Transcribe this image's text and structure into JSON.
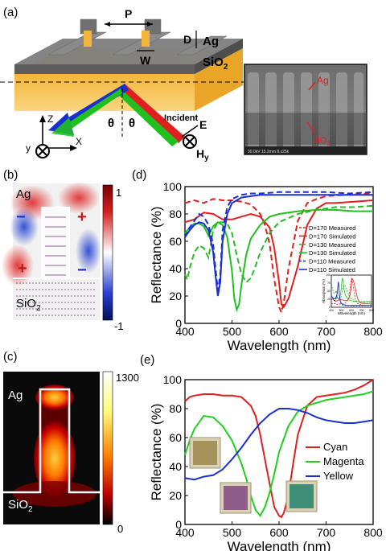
{
  "panels": {
    "a": {
      "label": "(a)",
      "period": "P",
      "width": "W",
      "depth": "D",
      "metal": "Ag",
      "substrate": "SiO",
      "substrate_sub": "2",
      "angle1": "θ",
      "angle2": "θ",
      "incident": "Incident",
      "e_field": "E",
      "h_field": "H",
      "h_sub": "y",
      "axis_z": "Z",
      "axis_x": "X",
      "axis_y": "y",
      "sem_metal": "Ag",
      "sem_substrate": "SiO",
      "sem_substrate_sub": "2",
      "sem_footer": "30.0kV 15.2mm 8.x25k"
    },
    "b": {
      "label": "(b)",
      "metal": "Ag",
      "substrate": "SiO",
      "substrate_sub": "2",
      "colorbar_max": "1",
      "colorbar_min": "-1",
      "sign_pos": "+",
      "sign_neg": "−"
    },
    "c": {
      "label": "(c)",
      "metal": "Ag",
      "substrate": "SiO",
      "substrate_sub": "2",
      "colorbar_max": "1300",
      "colorbar_min": "0"
    },
    "d": {
      "label": "(d)"
    },
    "e": {
      "label": "(e)",
      "swatch_colors": [
        "#a8925c",
        "#8e5e88",
        "#3f8f78"
      ]
    }
  },
  "chart_data": [
    {
      "id": "d",
      "type": "line",
      "xlabel": "Wavelength (nm)",
      "ylabel": "Reflectance (%)",
      "xlim": [
        400,
        800
      ],
      "ylim": [
        0,
        100
      ],
      "xticks": [
        400,
        500,
        600,
        700,
        800
      ],
      "yticks": [
        0,
        20,
        40,
        60,
        80,
        100
      ],
      "legend_position": "center-right",
      "series": [
        {
          "name": "D=170 Measured",
          "color": "#e02020",
          "dash": true,
          "x": [
            400,
            420,
            440,
            460,
            480,
            500,
            520,
            540,
            560,
            570,
            580,
            590,
            600,
            605,
            610,
            620,
            640,
            660,
            680,
            700,
            740,
            800
          ],
          "y": [
            88,
            90,
            88,
            91,
            90,
            90,
            89,
            87,
            80,
            72,
            58,
            32,
            12,
            8,
            15,
            40,
            75,
            88,
            91,
            93,
            94,
            95
          ]
        },
        {
          "name": "D=170 Simulated",
          "color": "#e02020",
          "dash": false,
          "x": [
            400,
            420,
            440,
            460,
            480,
            500,
            520,
            540,
            560,
            580,
            590,
            600,
            605,
            610,
            620,
            640,
            660,
            680,
            700,
            720,
            760,
            800
          ],
          "y": [
            74,
            76,
            81,
            80,
            76,
            76,
            78,
            80,
            78,
            70,
            55,
            30,
            14,
            12,
            18,
            42,
            72,
            84,
            88,
            88,
            89,
            90
          ]
        },
        {
          "name": "D=130 Measured",
          "color": "#20c020",
          "dash": true,
          "x": [
            400,
            405,
            410,
            420,
            430,
            440,
            450,
            460,
            470,
            480,
            490,
            500,
            510,
            520,
            530,
            540,
            550,
            560,
            580,
            600,
            640,
            680,
            720,
            760,
            800
          ],
          "y": [
            36,
            32,
            40,
            52,
            57,
            55,
            48,
            68,
            74,
            74,
            73,
            66,
            50,
            36,
            30,
            33,
            42,
            52,
            66,
            74,
            80,
            83,
            85,
            85,
            86
          ]
        },
        {
          "name": "D=130 Simulated",
          "color": "#20c020",
          "dash": false,
          "x": [
            400,
            410,
            420,
            430,
            440,
            450,
            460,
            470,
            480,
            490,
            500,
            505,
            510,
            515,
            520,
            530,
            540,
            560,
            580,
            600,
            640,
            680,
            720,
            760,
            800
          ],
          "y": [
            66,
            70,
            73,
            73,
            71,
            64,
            71,
            74,
            72,
            63,
            38,
            18,
            10,
            14,
            28,
            50,
            62,
            72,
            78,
            80,
            82,
            83,
            83,
            82,
            82
          ]
        },
        {
          "name": "D=110 Measured",
          "color": "#1a2fd0",
          "dash": true,
          "x": [
            400,
            410,
            420,
            430,
            440,
            450,
            460,
            465,
            470,
            475,
            480,
            490,
            500,
            520,
            540,
            560,
            600,
            650,
            700,
            750,
            800
          ],
          "y": [
            63,
            70,
            75,
            80,
            78,
            72,
            58,
            40,
            24,
            35,
            68,
            85,
            91,
            94,
            95,
            95,
            96,
            96,
            96,
            95,
            96
          ]
        },
        {
          "name": "D=110 Simulated",
          "color": "#1a2fd0",
          "dash": false,
          "x": [
            400,
            410,
            420,
            430,
            440,
            450,
            460,
            465,
            470,
            475,
            480,
            490,
            500,
            520,
            540,
            560,
            600,
            650,
            700,
            750,
            800
          ],
          "y": [
            63,
            68,
            72,
            74,
            73,
            68,
            52,
            35,
            20,
            30,
            60,
            80,
            88,
            92,
            93,
            94,
            94,
            94,
            94,
            94,
            94
          ]
        }
      ],
      "inset": {
        "xlabel": "Wavelength (nm)",
        "ylabel": "Absorption (%)",
        "xticks": [
          400,
          500,
          600,
          700,
          800
        ],
        "yticks": [
          0,
          25,
          50,
          75,
          100
        ]
      }
    },
    {
      "id": "e",
      "type": "line",
      "xlabel": "Wavelength (nm)",
      "ylabel": "Reflectance (%)",
      "xlim": [
        400,
        800
      ],
      "ylim": [
        0,
        100
      ],
      "xticks": [
        400,
        500,
        600,
        700,
        800
      ],
      "yticks": [
        0,
        20,
        40,
        60,
        80,
        100
      ],
      "legend_position": "center-right",
      "series": [
        {
          "name": "Cyan",
          "color": "#e02020",
          "x": [
            400,
            410,
            420,
            440,
            460,
            480,
            500,
            520,
            540,
            550,
            560,
            570,
            580,
            590,
            600,
            605,
            610,
            620,
            630,
            640,
            660,
            680,
            700,
            720,
            740,
            760,
            780,
            800
          ],
          "y": [
            85,
            88,
            89,
            90,
            90,
            89,
            89,
            88,
            82,
            75,
            62,
            45,
            28,
            12,
            6,
            5,
            8,
            20,
            42,
            62,
            82,
            88,
            89,
            90,
            91,
            93,
            96,
            100
          ]
        },
        {
          "name": "Magenta",
          "color": "#20d020",
          "x": [
            400,
            410,
            420,
            440,
            460,
            480,
            500,
            520,
            530,
            540,
            550,
            560,
            570,
            580,
            590,
            600,
            620,
            640,
            660,
            680,
            700,
            720,
            740,
            760,
            780,
            800
          ],
          "y": [
            48,
            58,
            66,
            75,
            74,
            68,
            58,
            42,
            32,
            20,
            10,
            6,
            12,
            22,
            35,
            50,
            68,
            78,
            82,
            84,
            86,
            87,
            88,
            89,
            90,
            92
          ]
        },
        {
          "name": "Yellow",
          "color": "#1a2fd0",
          "x": [
            400,
            420,
            440,
            460,
            480,
            500,
            520,
            540,
            560,
            580,
            600,
            620,
            640,
            660,
            680,
            700,
            720,
            740,
            760,
            780,
            800
          ],
          "y": [
            32,
            31,
            33,
            34,
            38,
            45,
            53,
            62,
            70,
            76,
            80,
            80,
            79,
            77,
            74,
            72,
            71,
            70,
            70,
            71,
            72
          ]
        }
      ]
    }
  ]
}
